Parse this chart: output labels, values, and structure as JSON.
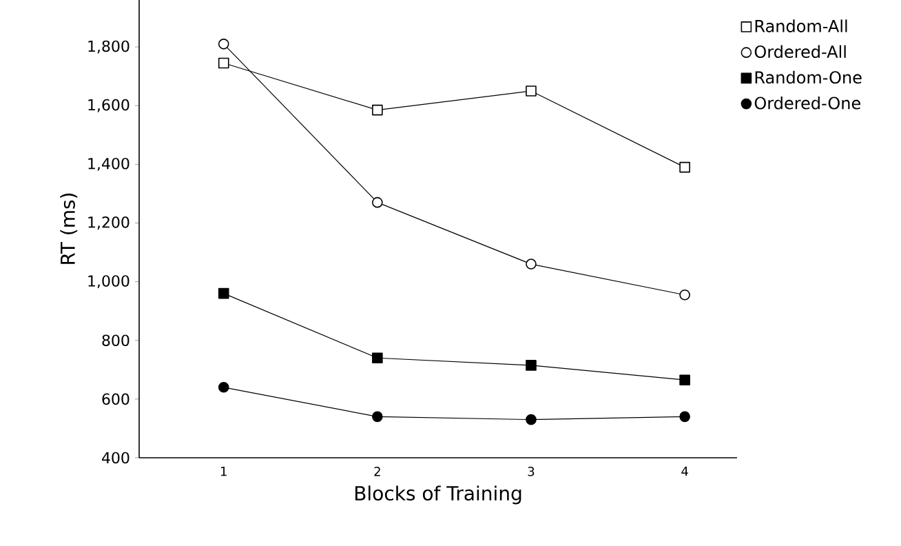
{
  "chart_data": {
    "type": "line",
    "xlabel": "Blocks of Training",
    "ylabel": "RT (ms)",
    "x": [
      1,
      2,
      3,
      4
    ],
    "xlim": [
      0.45,
      4.34
    ],
    "xticks": [
      1,
      2,
      3,
      4
    ],
    "ylim": [
      400,
      1960
    ],
    "yticks": [
      400,
      {
        "value": 600,
        "label": "600"
      },
      {
        "value": 800,
        "label": "800"
      },
      {
        "value": 1000,
        "label": "1,000"
      },
      {
        "value": 1200,
        "label": "1,200"
      },
      {
        "value": 1400,
        "label": "1,400"
      },
      {
        "value": 1600,
        "label": "1,600"
      },
      {
        "value": 1800,
        "label": "1,800"
      }
    ],
    "legend": "top right",
    "grid": false,
    "line_style": "solid",
    "series": [
      {
        "name": "Random-All",
        "color": "#ffffff",
        "marker": "square",
        "values": [
          1745,
          1585,
          1650,
          1390
        ]
      },
      {
        "name": "Ordered-All",
        "color": "#ffffff",
        "marker": "circle",
        "values": [
          1810,
          1270,
          1060,
          955
        ]
      },
      {
        "name": "Random-One",
        "color": "#000000",
        "marker": "square",
        "values": [
          960,
          740,
          715,
          665
        ]
      },
      {
        "name": "Ordered-One",
        "color": "#000000",
        "marker": "circle",
        "values": [
          640,
          540,
          530,
          540
        ]
      }
    ]
  }
}
